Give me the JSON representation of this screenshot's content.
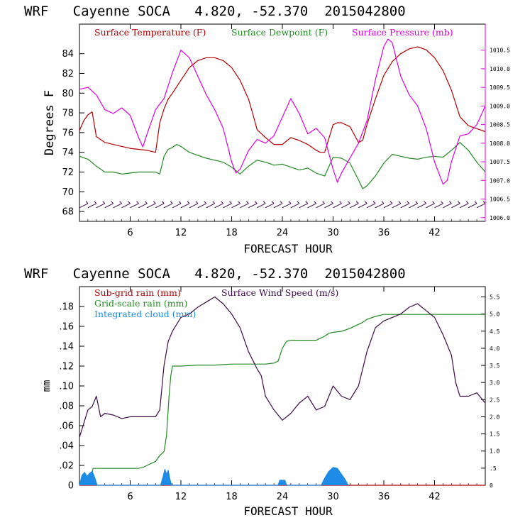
{
  "colors": {
    "temperature": "#b40000",
    "dewpoint": "#228b22",
    "pressure": "#e000e0",
    "subgrid": "#b40000",
    "gridscale": "#228b22",
    "cloud": "#1e8ce6",
    "wind": "#3c0a46",
    "barbs": "#3c0a46"
  },
  "chart_data": [
    {
      "type": "line",
      "title": "WRF   Cayenne SOCA   4.820, -52.370  2015042800",
      "xlabel": "FORECAST HOUR",
      "ylabel": "Degrees F",
      "xlim": [
        0,
        48
      ],
      "ylim": [
        67,
        87
      ],
      "y2lim": [
        1005.9,
        1011.2
      ],
      "xticks": [
        "6",
        "12",
        "18",
        "24",
        "30",
        "36",
        "42"
      ],
      "xtick_values": [
        6,
        12,
        18,
        24,
        30,
        36,
        42
      ],
      "yticks": [
        "68",
        "70",
        "72",
        "74",
        "76",
        "78",
        "80",
        "82",
        "84"
      ],
      "ytick_values": [
        68,
        70,
        72,
        74,
        76,
        78,
        80,
        82,
        84
      ],
      "y2ticks": [
        "1006.0",
        "1006.5",
        "1007.0",
        "1007.5",
        "1008.0",
        "1008.5",
        "1009.0",
        "1009.5",
        "1010.0",
        "1010.5"
      ],
      "y2tick_values": [
        1006.0,
        1006.5,
        1007.0,
        1007.5,
        1008.0,
        1008.5,
        1009.0,
        1009.5,
        1010.0,
        1010.5
      ],
      "legend": [
        "Surface Temperature (F)",
        "Surface Dewpoint (F)",
        "Surface Pressure (mb)"
      ],
      "series": [
        {
          "name": "Surface Temperature (F)",
          "axis": "left",
          "color_key": "temperature",
          "x": [
            0,
            0.5,
            1,
            1.5,
            2,
            3,
            4,
            5,
            6,
            7,
            8,
            9,
            9.5,
            10,
            10.5,
            11,
            12,
            13,
            14,
            15,
            16,
            17,
            18,
            19,
            20,
            20.5,
            21,
            22,
            23,
            24,
            25,
            26,
            27,
            28,
            28.5,
            29,
            30,
            30.5,
            31,
            32,
            33,
            33.5,
            34,
            35,
            36,
            37,
            38,
            39,
            40,
            41,
            42,
            43,
            44,
            45,
            46,
            47,
            48
          ],
          "values": [
            76.2,
            77.2,
            77.8,
            78.1,
            75.6,
            75.0,
            74.8,
            74.6,
            74.4,
            74.3,
            74.2,
            74.0,
            77.0,
            78.4,
            79.4,
            80.0,
            81.3,
            82.6,
            83.3,
            83.6,
            83.6,
            83.3,
            82.6,
            81.3,
            79.4,
            77.9,
            76.3,
            75.5,
            74.8,
            74.8,
            75.5,
            75.2,
            74.8,
            74.2,
            74.0,
            74.0,
            76.8,
            77.0,
            77.0,
            76.6,
            75.0,
            75.2,
            76.8,
            79.4,
            81.8,
            83.2,
            84.0,
            84.5,
            84.7,
            84.4,
            83.6,
            82.3,
            80.3,
            77.6,
            76.7,
            76.4,
            76.1
          ]
        },
        {
          "name": "Surface Dewpoint (F)",
          "axis": "left",
          "color_key": "dewpoint",
          "x": [
            0,
            1,
            2,
            3,
            4,
            5,
            6,
            7,
            8,
            9,
            9.5,
            10,
            10.5,
            11,
            11.5,
            12,
            13,
            14,
            15,
            16,
            17,
            18,
            19,
            20,
            21,
            22,
            23,
            24,
            25,
            26,
            27,
            28,
            29,
            30,
            31,
            32,
            33,
            33.5,
            34,
            35,
            36,
            37,
            38,
            39,
            40,
            41,
            42,
            43,
            44,
            45,
            46,
            47,
            48
          ],
          "values": [
            73.6,
            73.3,
            72.6,
            72.0,
            72.0,
            71.8,
            71.9,
            72.0,
            72.0,
            72.0,
            71.8,
            73.6,
            74.3,
            74.5,
            74.8,
            74.6,
            74.0,
            73.7,
            73.4,
            73.2,
            73.0,
            72.5,
            71.8,
            72.6,
            73.2,
            73.0,
            72.7,
            72.8,
            72.5,
            72.2,
            72.4,
            71.9,
            71.6,
            73.5,
            73.4,
            72.9,
            71.2,
            70.3,
            70.6,
            71.6,
            72.9,
            73.8,
            73.6,
            73.4,
            73.3,
            73.5,
            73.6,
            73.5,
            74.2,
            75.0,
            74.2,
            73.0,
            72.0
          ]
        },
        {
          "name": "Surface Pressure (mb)",
          "axis": "right",
          "color_key": "pressure",
          "x": [
            0,
            1,
            2,
            3,
            4,
            5,
            6,
            7,
            7.5,
            8,
            9,
            10,
            11,
            12,
            13,
            14,
            15,
            16,
            17,
            18,
            18.5,
            19,
            20,
            21,
            22,
            23,
            24,
            25,
            26,
            27,
            28,
            29,
            30,
            30.5,
            31,
            32,
            33,
            34,
            35,
            36,
            36.5,
            37,
            38,
            39,
            40,
            41,
            42,
            43,
            43.5,
            44,
            45,
            46,
            47,
            48
          ],
          "values": [
            1009.45,
            1009.5,
            1009.3,
            1008.9,
            1008.8,
            1008.95,
            1008.75,
            1008.15,
            1007.9,
            1008.25,
            1008.9,
            1009.2,
            1009.9,
            1010.5,
            1010.3,
            1009.8,
            1009.3,
            1008.9,
            1008.4,
            1007.5,
            1007.2,
            1007.3,
            1007.8,
            1008.1,
            1008.0,
            1008.2,
            1008.7,
            1009.2,
            1008.8,
            1008.25,
            1008.4,
            1008.15,
            1007.3,
            1006.95,
            1007.2,
            1007.6,
            1008.0,
            1008.6,
            1009.7,
            1010.6,
            1010.8,
            1010.7,
            1009.8,
            1009.3,
            1009.0,
            1008.4,
            1007.5,
            1006.9,
            1007.0,
            1007.5,
            1008.2,
            1008.25,
            1008.5,
            1009.0
          ]
        }
      ],
      "wind_barbs": {
        "hours_start": 0.5,
        "hours_step": 1,
        "count": 48,
        "y_level": 68.6,
        "label": "wind barbs"
      }
    },
    {
      "type": "line",
      "title": "WRF   Cayenne SOCA   4.820, -52.370  2015042800",
      "xlabel": "FORECAST HOUR",
      "ylabel": "mm",
      "xlim": [
        0,
        48
      ],
      "ylim": [
        0,
        0.2
      ],
      "y2lim": [
        0,
        5.8
      ],
      "xticks": [
        "6",
        "12",
        "18",
        "24",
        "30",
        "36",
        "42"
      ],
      "xtick_values": [
        6,
        12,
        18,
        24,
        30,
        36,
        42
      ],
      "yticks": [
        "0",
        ".02",
        ".04",
        ".06",
        ".08",
        ".10",
        ".12",
        ".14",
        ".16",
        ".18"
      ],
      "ytick_values": [
        0,
        0.02,
        0.04,
        0.06,
        0.08,
        0.1,
        0.12,
        0.14,
        0.16,
        0.18
      ],
      "y2ticks": [
        "0",
        ".5",
        "1.0",
        "1.5",
        "2.0",
        "2.5",
        "3.0",
        "3.5",
        "4.0",
        "4.5",
        "5.0",
        "5.5"
      ],
      "y2tick_values": [
        0,
        0.5,
        1.0,
        1.5,
        2.0,
        2.5,
        3.0,
        3.5,
        4.0,
        4.5,
        5.0,
        5.5
      ],
      "legend": [
        "Sub-grid rain (mm)",
        "Surface Wind Speed (m/s)",
        "Grid-scale rain (mm)",
        "Integrated cloud (mm)"
      ],
      "series": [
        {
          "name": "Sub-grid rain (mm)",
          "axis": "left",
          "color_key": "subgrid",
          "x": [
            0,
            48
          ],
          "values": [
            0,
            0
          ]
        },
        {
          "name": "Grid-scale rain (mm)",
          "axis": "left",
          "color_key": "gridscale",
          "x": [
            0,
            0.5,
            1,
            1.5,
            1.6,
            2,
            3,
            4,
            5,
            6,
            7,
            7.5,
            8,
            9,
            9.5,
            10,
            10.3,
            10.6,
            10.8,
            11,
            12,
            14,
            16,
            18,
            20,
            22,
            23,
            23.5,
            24,
            24.5,
            25,
            26,
            27,
            28,
            28.5,
            29,
            29.5,
            30,
            31,
            32,
            33,
            33.5,
            34,
            35,
            36,
            40,
            44,
            48
          ],
          "values": [
            0.003,
            0.006,
            0.009,
            0.012,
            0.017,
            0.017,
            0.017,
            0.017,
            0.017,
            0.017,
            0.017,
            0.018,
            0.02,
            0.024,
            0.03,
            0.034,
            0.05,
            0.09,
            0.11,
            0.12,
            0.12,
            0.121,
            0.121,
            0.122,
            0.122,
            0.122,
            0.123,
            0.125,
            0.138,
            0.145,
            0.146,
            0.146,
            0.146,
            0.146,
            0.148,
            0.15,
            0.153,
            0.154,
            0.155,
            0.158,
            0.162,
            0.164,
            0.167,
            0.17,
            0.172,
            0.172,
            0.172,
            0.172
          ]
        },
        {
          "name": "Integrated cloud (mm)",
          "axis": "left",
          "color_key": "cloud",
          "x": [
            0,
            0.3,
            0.6,
            0.9,
            1.2,
            1.5,
            1.8,
            2.1,
            9.6,
            9.9,
            10.1,
            10.3,
            10.5,
            10.7,
            10.9,
            23.5,
            23.7,
            24.0,
            24.3,
            24.5,
            28.6,
            29.0,
            29.5,
            30.0,
            30.5,
            31.0,
            31.4,
            31.8
          ],
          "values": [
            0.0,
            0.01,
            0.013,
            0.009,
            0.012,
            0.014,
            0.008,
            0.0,
            0.0,
            0.009,
            0.016,
            0.011,
            0.015,
            0.006,
            0.0,
            0.0,
            0.005,
            0.005,
            0.005,
            0.0,
            0.0,
            0.007,
            0.014,
            0.018,
            0.017,
            0.011,
            0.006,
            0.0
          ]
        },
        {
          "name": "Surface Wind Speed (m/s)",
          "axis": "right",
          "color_key": "wind",
          "x": [
            0,
            0.5,
            1,
            1.5,
            2,
            2.5,
            3,
            4,
            5,
            6,
            7,
            8,
            9,
            9.5,
            10,
            10.5,
            11,
            12,
            13,
            14,
            15,
            16,
            17,
            18,
            19,
            20,
            21,
            21.5,
            22,
            23,
            24,
            25,
            26,
            27,
            28,
            29,
            30,
            31,
            32,
            33,
            34,
            35,
            36,
            37,
            38,
            39,
            40,
            41,
            42,
            43,
            44,
            44.5,
            45,
            46,
            47,
            48
          ],
          "values": [
            1.4,
            1.8,
            2.2,
            2.3,
            2.6,
            2.0,
            2.1,
            2.05,
            1.95,
            2.0,
            2.0,
            2.0,
            2.0,
            2.2,
            3.5,
            4.2,
            4.5,
            4.9,
            5.0,
            5.2,
            5.35,
            5.5,
            5.3,
            5.0,
            4.6,
            3.9,
            3.4,
            3.2,
            2.6,
            2.2,
            1.9,
            2.1,
            2.4,
            2.6,
            2.2,
            2.3,
            2.9,
            2.6,
            2.5,
            2.9,
            3.9,
            4.6,
            4.8,
            4.9,
            5.0,
            5.2,
            5.3,
            5.1,
            4.9,
            4.4,
            3.8,
            3.0,
            2.6,
            2.6,
            2.7,
            2.4
          ]
        }
      ]
    }
  ]
}
